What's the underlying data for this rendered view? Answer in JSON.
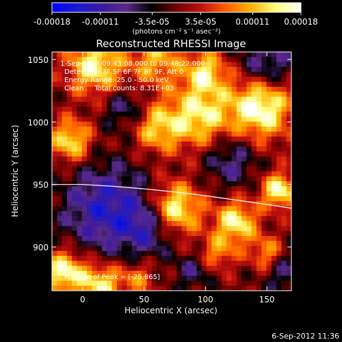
{
  "chart_data": {
    "type": "heatmap",
    "title": "Reconstructed RHESSI Image",
    "xlabel": "Heliocentric X (arcsec)",
    "ylabel": "Heliocentric Y (arcsec)",
    "xlim": [
      -25,
      170
    ],
    "ylim": [
      865,
      1056
    ],
    "x_ticks": [
      0,
      50,
      100,
      150
    ],
    "y_ticks": [
      900,
      950,
      1000,
      1050
    ],
    "colorbar": {
      "ticks": [
        -0.00018,
        -0.00011,
        -3.5e-05,
        3.5e-05,
        0.00011,
        0.00018
      ],
      "tick_labels": [
        "-0.00018",
        "-0.00011",
        "-3.5e-05",
        "3.5e-05",
        "0.00011",
        "0.00018"
      ],
      "unit_label": "(photons cm⁻² s⁻¹ asec⁻²)",
      "range": [
        -0.00018,
        0.00018
      ],
      "colormap": [
        "#0000ff",
        "#1a1ad0",
        "#3a1aa0",
        "#5a2a8a",
        "#000000",
        "#700000",
        "#c01010",
        "#ff6000",
        "#ffb000",
        "#ffff80",
        "#ffffff"
      ]
    },
    "annotations": [
      "1-Sep-2012 09:43:08.000 to 09:48:22.000",
      "Detectors: 3F 5F 6F 7F 8F 9F, Att 0",
      "Energy Range: 25.0 - 50.0 keV",
      "Clean     Total counts: 8.31E+03"
    ],
    "peak_label": "Position of Peak = [-25,865]",
    "limb_curve": {
      "x": [
        -25,
        0,
        25,
        50,
        75,
        100,
        125,
        150,
        170
      ],
      "y": [
        950,
        950,
        948.5,
        946.5,
        944,
        941,
        937.5,
        934,
        931
      ]
    },
    "sources": [
      {
        "x": 145,
        "y": 1012,
        "amp": 1.0,
        "w": 18
      },
      {
        "x": 75,
        "y": 930,
        "amp": 0.95,
        "w": 15
      },
      {
        "x": 160,
        "y": 945,
        "amp": 0.9,
        "w": 10
      },
      {
        "x": 125,
        "y": 920,
        "amp": 0.85,
        "w": 12
      },
      {
        "x": 95,
        "y": 1005,
        "amp": 0.8,
        "w": 18
      },
      {
        "x": 60,
        "y": 995,
        "amp": 0.65,
        "w": 14
      },
      {
        "x": 10,
        "y": 1045,
        "amp": 0.85,
        "w": 16
      },
      {
        "x": -10,
        "y": 985,
        "amp": 0.8,
        "w": 12
      },
      {
        "x": -15,
        "y": 880,
        "amp": 0.95,
        "w": 12
      },
      {
        "x": 15,
        "y": 870,
        "amp": 0.8,
        "w": 12
      },
      {
        "x": 60,
        "y": 1050,
        "amp": 0.6,
        "w": 15
      },
      {
        "x": 100,
        "y": 1040,
        "amp": 0.7,
        "w": 12
      },
      {
        "x": 45,
        "y": 875,
        "amp": 0.45,
        "w": 10
      },
      {
        "x": 110,
        "y": 895,
        "amp": 0.5,
        "w": 10
      },
      {
        "x": 150,
        "y": 895,
        "amp": 0.55,
        "w": 10
      },
      {
        "x": 20,
        "y": 930,
        "amp": -0.7,
        "w": 25
      },
      {
        "x": 55,
        "y": 915,
        "amp": -0.5,
        "w": 15
      },
      {
        "x": 120,
        "y": 970,
        "amp": -0.45,
        "w": 15
      },
      {
        "x": 150,
        "y": 1045,
        "amp": -0.55,
        "w": 15
      },
      {
        "x": 35,
        "y": 1010,
        "amp": -0.4,
        "w": 12
      },
      {
        "x": 165,
        "y": 880,
        "amp": -0.4,
        "w": 12
      },
      {
        "x": 90,
        "y": 880,
        "amp": -0.35,
        "w": 10
      }
    ]
  },
  "footer": {
    "date": "6-Sep-2012 11:36"
  }
}
